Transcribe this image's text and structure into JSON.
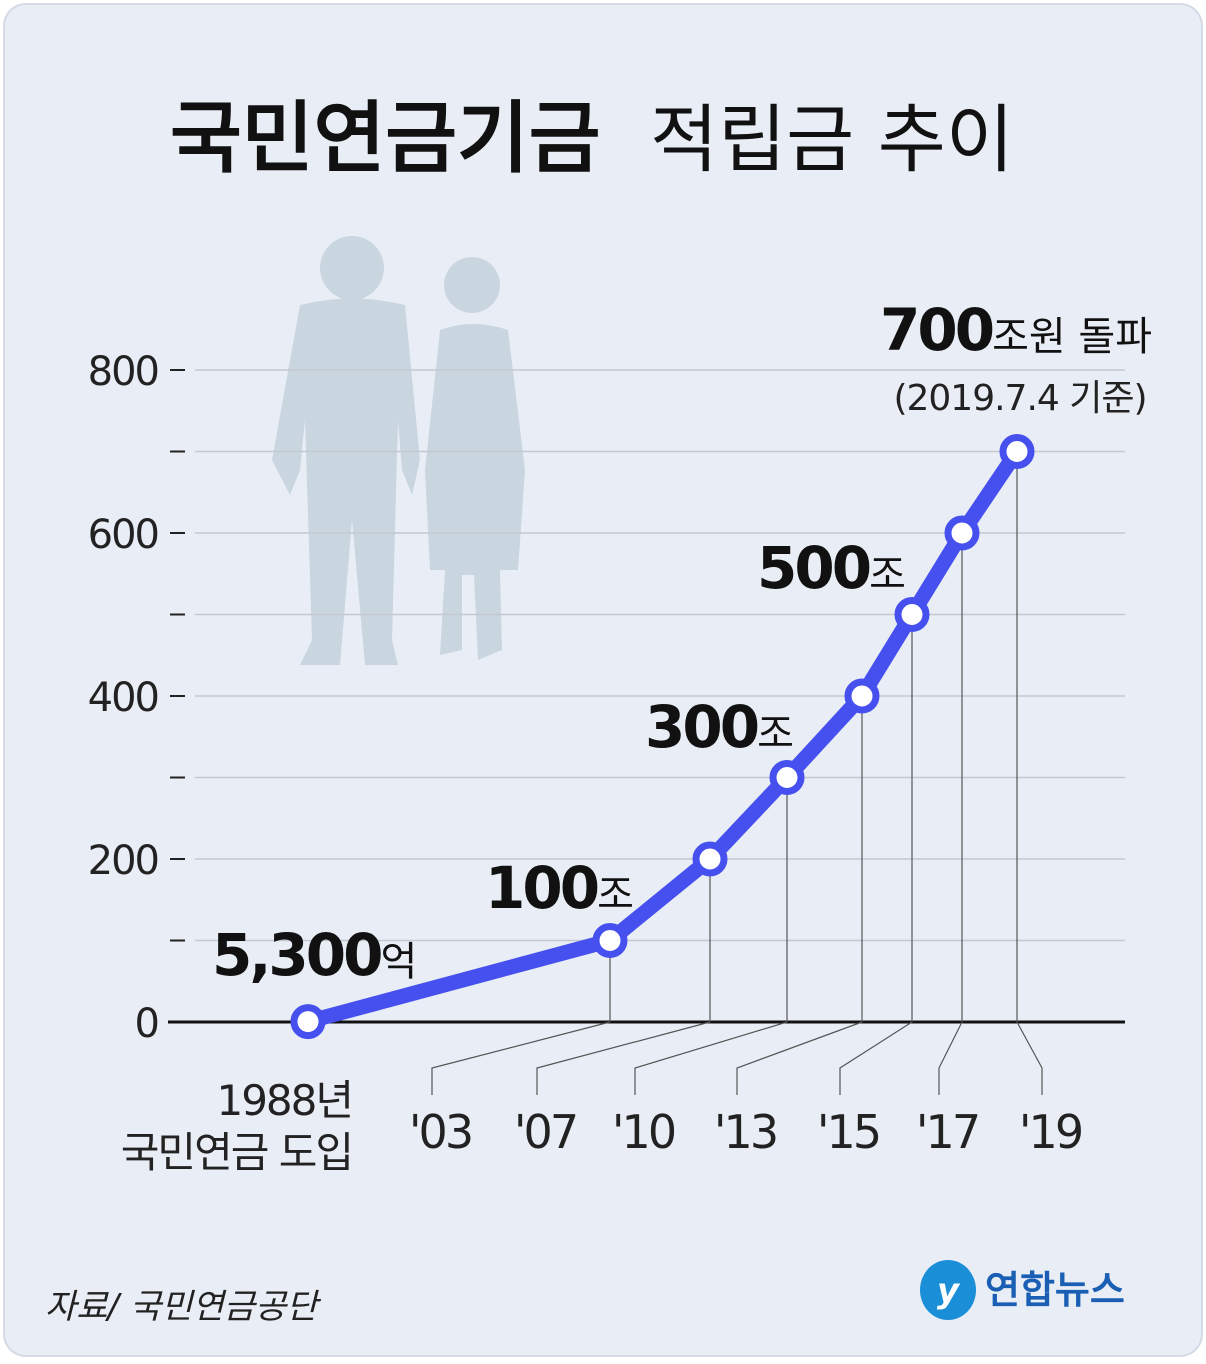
{
  "chart_data": {
    "type": "line",
    "title": [
      "국민연금기금",
      "적립금 추이"
    ],
    "categories": [
      "1988년\n국민연금 도입",
      "'03",
      "'07",
      "'10",
      "'13",
      "'15",
      "'17",
      "'19"
    ],
    "series": [
      {
        "name": "적립금",
        "color": "#4650ee",
        "values": [
          0.53,
          100,
          200,
          300,
          400,
          500,
          600,
          700
        ],
        "value_labels": [
          "5,300억",
          "100조",
          null,
          "300조",
          null,
          "500조",
          null,
          "700조원 돌파"
        ]
      }
    ],
    "annotation": "(2019.7.4 기준)",
    "ylim": [
      0,
      800
    ],
    "yticks": [
      0,
      200,
      400,
      600,
      800
    ],
    "yminor": [
      100,
      300,
      500,
      700
    ],
    "grid": true,
    "source": "자료/ 국민연금공단",
    "logo": "연합뉴스"
  }
}
